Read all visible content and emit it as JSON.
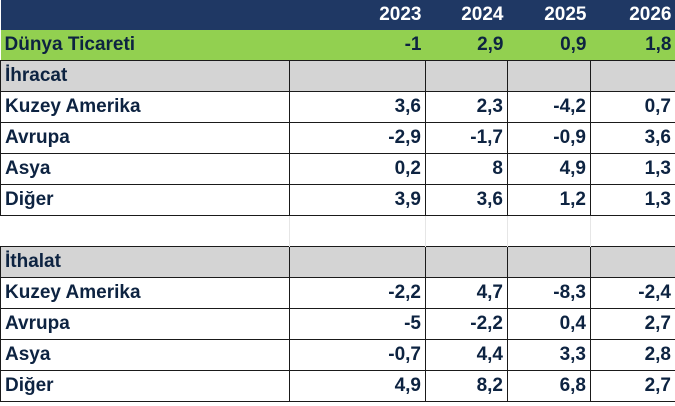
{
  "table": {
    "headers": [
      "",
      "2023",
      "2024",
      "2025",
      "2026"
    ],
    "world": {
      "label": "Dünya Ticareti",
      "values": [
        "-1",
        "2,9",
        "0,9",
        "1,8"
      ]
    },
    "exports": {
      "title": "İhracat",
      "rows": [
        {
          "label": "Kuzey Amerika",
          "values": [
            "3,6",
            "2,3",
            "-4,2",
            "0,7"
          ]
        },
        {
          "label": "Avrupa",
          "values": [
            "-2,9",
            "-1,7",
            "-0,9",
            "3,6"
          ]
        },
        {
          "label": "Asya",
          "values": [
            "0,2",
            "8",
            "4,9",
            "1,3"
          ]
        },
        {
          "label": "Diğer",
          "values": [
            "3,9",
            "3,6",
            "1,2",
            "1,3"
          ]
        }
      ]
    },
    "imports": {
      "title": "İthalat",
      "rows": [
        {
          "label": "Kuzey Amerika",
          "values": [
            "-2,2",
            "4,7",
            "-8,3",
            "-2,4"
          ]
        },
        {
          "label": "Avrupa",
          "values": [
            "-5",
            "-2,2",
            "0,4",
            "2,7"
          ]
        },
        {
          "label": "Asya",
          "values": [
            "-0,7",
            "4,4",
            "3,3",
            "2,8"
          ]
        },
        {
          "label": "Diğer",
          "values": [
            "4,9",
            "8,2",
            "6,8",
            "2,7"
          ]
        }
      ]
    },
    "colors": {
      "header_bg": "#1f3864",
      "world_bg": "#92d050",
      "section_bg": "#d4d4d4",
      "text": "#0d2341"
    }
  }
}
